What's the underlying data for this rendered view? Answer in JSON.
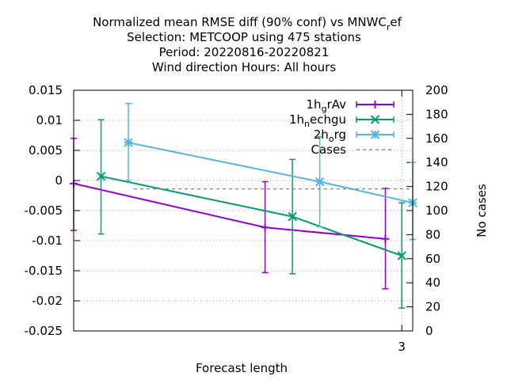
{
  "chart_data": {
    "type": "line",
    "title_lines": [
      "Normalized mean RMSE diff (90% conf) vs MNWC_ref",
      "Selection: METCOOP using   475 stations",
      "Period: 20220816-20220821",
      "Wind direction   Hours:  All hours"
    ],
    "xlabel": "Forecast length",
    "ylabel": "",
    "y2label": "No cases",
    "xlim": [
      0,
      3.1
    ],
    "ylim": [
      -0.025,
      0.015
    ],
    "y2lim": [
      0,
      200
    ],
    "x_ticks": [
      3
    ],
    "y_ticks": [
      -0.025,
      -0.02,
      -0.015,
      -0.01,
      -0.005,
      0,
      0.005,
      0.01,
      0.015
    ],
    "y_tick_labels": [
      "-0.025",
      "-0.02",
      "-0.015",
      "-0.01",
      "-0.005",
      "0",
      "0.005",
      "0.01",
      "0.015"
    ],
    "y2_ticks": [
      0,
      20,
      40,
      60,
      80,
      100,
      120,
      140,
      160,
      180,
      200
    ],
    "grid": true,
    "legend_position": "top-right",
    "series": [
      {
        "name": "1h_grAv",
        "legend_main": "1h",
        "legend_sub": "g",
        "legend_rest": "rAv",
        "color": "#9400d3",
        "marker": "plus",
        "x": [
          0,
          1.75,
          2.85
        ],
        "y": [
          -0.0005,
          -0.0078,
          -0.0097
        ],
        "err_low": [
          -0.0083,
          -0.0153,
          -0.018
        ],
        "err_high": [
          0.007,
          -0.0002,
          -0.0013
        ]
      },
      {
        "name": "1h_nechgu",
        "legend_main": "1h",
        "legend_sub": "n",
        "legend_rest": "echgu",
        "color": "#009e73",
        "marker": "cross",
        "x": [
          0.25,
          2.0,
          3.0
        ],
        "y": [
          0.0007,
          -0.006,
          -0.0125
        ],
        "err_low": [
          -0.0089,
          -0.0155,
          -0.0212
        ],
        "err_high": [
          0.0101,
          0.0035,
          -0.0037
        ]
      },
      {
        "name": "2h_org",
        "legend_main": "2h",
        "legend_sub": "o",
        "legend_rest": "rg",
        "color": "#56b4e9",
        "marker": "star",
        "x": [
          0.5,
          2.25,
          3.1
        ],
        "y": [
          0.0063,
          -0.0002,
          -0.0037
        ],
        "err_low": [
          0.0,
          -0.0077,
          -0.0098
        ],
        "err_high": [
          0.0128,
          0.0073,
          0.003
        ]
      },
      {
        "name": "Cases",
        "color": "#808080",
        "dashed": true,
        "y2_value": 118
      }
    ]
  }
}
